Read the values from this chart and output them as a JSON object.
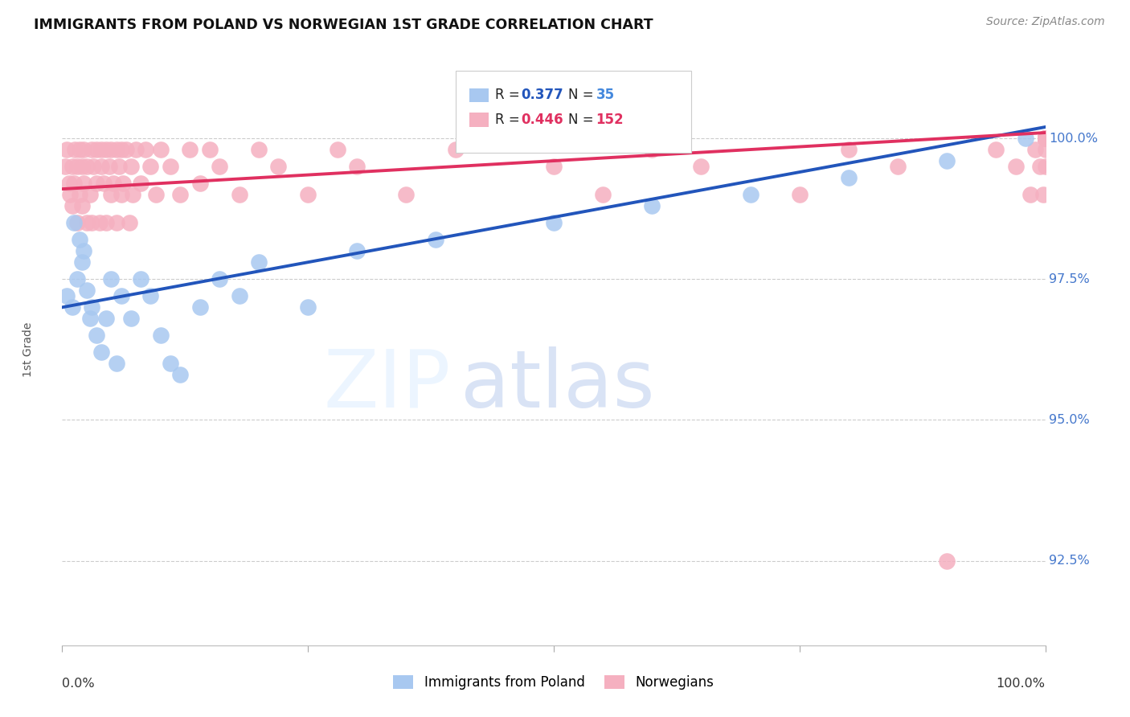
{
  "title": "IMMIGRANTS FROM POLAND VS NORWEGIAN 1ST GRADE CORRELATION CHART",
  "source": "Source: ZipAtlas.com",
  "ylabel": "1st Grade",
  "ytick_labels": [
    "92.5%",
    "95.0%",
    "97.5%",
    "100.0%"
  ],
  "ytick_values": [
    92.5,
    95.0,
    97.5,
    100.0
  ],
  "xlim": [
    0.0,
    100.0
  ],
  "ylim": [
    91.0,
    101.5
  ],
  "legend_blue_r": "0.377",
  "legend_blue_n": "35",
  "legend_pink_r": "0.446",
  "legend_pink_n": "152",
  "legend_label_blue": "Immigrants from Poland",
  "legend_label_pink": "Norwegians",
  "blue_color": "#A8C8F0",
  "pink_color": "#F5B0C0",
  "blue_line_color": "#2255BB",
  "pink_line_color": "#E03060",
  "blue_scatter_x": [
    0.5,
    1.0,
    1.2,
    1.5,
    1.8,
    2.0,
    2.2,
    2.5,
    2.8,
    3.0,
    3.5,
    4.0,
    4.5,
    5.0,
    5.5,
    6.0,
    7.0,
    8.0,
    9.0,
    10.0,
    11.0,
    12.0,
    14.0,
    16.0,
    18.0,
    20.0,
    25.0,
    30.0,
    38.0,
    50.0,
    60.0,
    70.0,
    80.0,
    90.0,
    98.0
  ],
  "blue_scatter_y": [
    97.2,
    97.0,
    98.5,
    97.5,
    98.2,
    97.8,
    98.0,
    97.3,
    96.8,
    97.0,
    96.5,
    96.2,
    96.8,
    97.5,
    96.0,
    97.2,
    96.8,
    97.5,
    97.2,
    96.5,
    96.0,
    95.8,
    97.0,
    97.5,
    97.2,
    97.8,
    97.0,
    98.0,
    98.2,
    98.5,
    98.8,
    99.0,
    99.3,
    99.6,
    100.0
  ],
  "blue_line_x0": 0.0,
  "blue_line_y0": 97.0,
  "blue_line_x1": 100.0,
  "blue_line_y1": 100.2,
  "pink_line_x0": 0.0,
  "pink_line_y0": 99.1,
  "pink_line_x1": 100.0,
  "pink_line_y1": 100.1,
  "pink_scatter_x": [
    0.3,
    0.5,
    0.7,
    0.8,
    1.0,
    1.0,
    1.2,
    1.3,
    1.5,
    1.5,
    1.8,
    1.8,
    2.0,
    2.0,
    2.2,
    2.2,
    2.5,
    2.5,
    2.8,
    3.0,
    3.0,
    3.2,
    3.5,
    3.5,
    3.8,
    4.0,
    4.0,
    4.2,
    4.5,
    4.5,
    4.8,
    5.0,
    5.0,
    5.2,
    5.5,
    5.5,
    5.8,
    6.0,
    6.0,
    6.2,
    6.5,
    6.8,
    7.0,
    7.2,
    7.5,
    8.0,
    8.5,
    9.0,
    9.5,
    10.0,
    11.0,
    12.0,
    13.0,
    14.0,
    15.0,
    16.0,
    18.0,
    20.0,
    22.0,
    25.0,
    28.0,
    30.0,
    35.0,
    40.0,
    50.0,
    55.0,
    60.0,
    65.0,
    75.0,
    80.0,
    85.0,
    90.0,
    95.0,
    97.0,
    98.5,
    99.0,
    99.5,
    99.8,
    100.0,
    100.0,
    100.0,
    100.0,
    100.0,
    100.0,
    100.0,
    100.0,
    100.0,
    100.0,
    100.0,
    100.0,
    100.0,
    100.0,
    100.0,
    100.0,
    100.0,
    100.0,
    100.0,
    100.0,
    100.0,
    100.0,
    100.0,
    100.0,
    100.0,
    100.0,
    100.0,
    100.0,
    100.0,
    100.0,
    100.0,
    100.0,
    100.0,
    100.0,
    100.0,
    100.0,
    100.0,
    100.0,
    100.0,
    100.0,
    100.0,
    100.0,
    100.0,
    100.0,
    100.0,
    100.0,
    100.0,
    100.0,
    100.0,
    100.0,
    100.0,
    100.0,
    100.0,
    100.0,
    100.0,
    100.0,
    100.0,
    100.0,
    100.0,
    100.0,
    100.0,
    100.0,
    100.0,
    100.0,
    100.0,
    100.0,
    100.0,
    100.0,
    100.0,
    100.0,
    100.0,
    100.0,
    100.0
  ],
  "pink_scatter_y": [
    99.5,
    99.8,
    99.2,
    99.0,
    99.5,
    98.8,
    99.2,
    99.8,
    98.5,
    99.5,
    99.0,
    99.8,
    98.8,
    99.5,
    99.2,
    99.8,
    98.5,
    99.5,
    99.0,
    99.8,
    98.5,
    99.5,
    99.2,
    99.8,
    98.5,
    99.5,
    99.8,
    99.2,
    99.8,
    98.5,
    99.5,
    99.0,
    99.8,
    99.2,
    99.8,
    98.5,
    99.5,
    99.0,
    99.8,
    99.2,
    99.8,
    98.5,
    99.5,
    99.0,
    99.8,
    99.2,
    99.8,
    99.5,
    99.0,
    99.8,
    99.5,
    99.0,
    99.8,
    99.2,
    99.8,
    99.5,
    99.0,
    99.8,
    99.5,
    99.0,
    99.8,
    99.5,
    99.0,
    99.8,
    99.5,
    99.0,
    99.8,
    99.5,
    99.0,
    99.8,
    99.5,
    92.5,
    99.8,
    99.5,
    99.0,
    99.8,
    99.5,
    99.0,
    99.8,
    99.5,
    100.0,
    100.0,
    100.0,
    100.0,
    100.0,
    100.0,
    100.0,
    100.0,
    100.0,
    100.0,
    100.0,
    100.0,
    100.0,
    100.0,
    100.0,
    100.0,
    100.0,
    100.0,
    100.0,
    100.0,
    100.0,
    100.0,
    100.0,
    100.0,
    100.0,
    100.0,
    100.0,
    100.0,
    100.0,
    100.0,
    100.0,
    100.0,
    100.0,
    100.0,
    100.0,
    100.0,
    100.0,
    100.0,
    100.0,
    100.0,
    100.0,
    100.0,
    100.0,
    100.0,
    100.0,
    100.0,
    100.0,
    100.0,
    100.0,
    100.0,
    100.0,
    100.0,
    100.0,
    100.0,
    100.0,
    100.0,
    100.0,
    100.0,
    100.0,
    100.0,
    100.0,
    100.0,
    100.0,
    100.0,
    100.0,
    100.0,
    100.0,
    100.0,
    100.0,
    100.0,
    100.0,
    100.0,
    100.0
  ]
}
